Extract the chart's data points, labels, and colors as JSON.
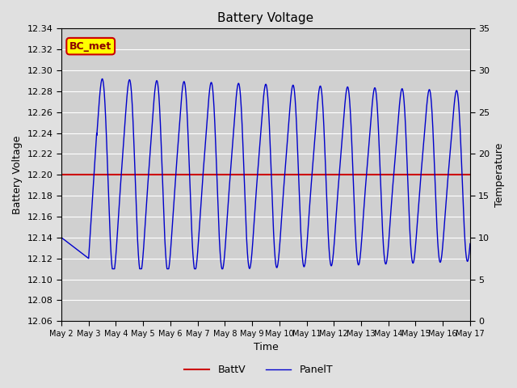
{
  "title": "Battery Voltage",
  "xlabel": "Time",
  "ylabel_left": "Battery Voltage",
  "ylabel_right": "Temperature",
  "xlim_start": 0,
  "xlim_end": 15,
  "ylim_left": [
    12.06,
    12.34
  ],
  "ylim_right": [
    0,
    35
  ],
  "battv_value": 12.2,
  "battv_color": "#cc0000",
  "panelt_color": "#0000cc",
  "background_color": "#e0e0e0",
  "plot_bg_color": "#d0d0d0",
  "grid_color": "#ffffff",
  "legend_items": [
    "BattV",
    "PanelT"
  ],
  "legend_colors": [
    "#cc0000",
    "#0000cc"
  ],
  "annotation_text": "BC_met",
  "annotation_bg": "#ffff00",
  "annotation_border": "#cc0000",
  "xtick_labels": [
    "May 2",
    "May 3",
    "May 4",
    "May 5",
    "May 6",
    "May 7",
    "May 8",
    "May 9",
    "May 10",
    "May 11",
    "May 12",
    "May 13",
    "May 14",
    "May 15",
    "May 16",
    "May 17"
  ],
  "xtick_positions": [
    0,
    1,
    2,
    3,
    4,
    5,
    6,
    7,
    8,
    9,
    10,
    11,
    12,
    13,
    14,
    15
  ],
  "ytick_left": [
    12.06,
    12.08,
    12.1,
    12.12,
    12.14,
    12.16,
    12.18,
    12.2,
    12.22,
    12.24,
    12.26,
    12.28,
    12.3,
    12.32,
    12.34
  ],
  "ytick_right": [
    0,
    5,
    10,
    15,
    20,
    25,
    30,
    35
  ]
}
